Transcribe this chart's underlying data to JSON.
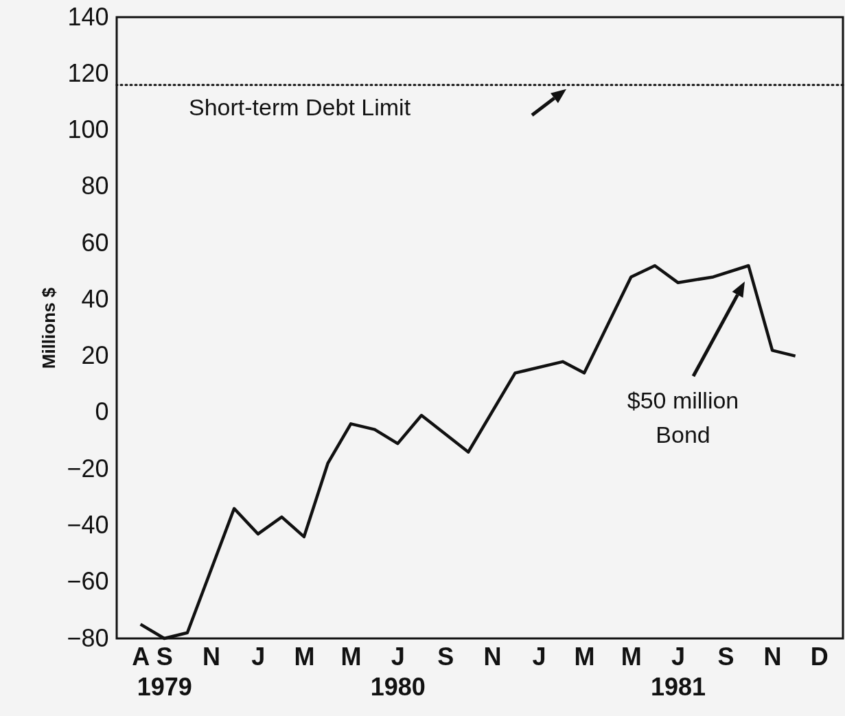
{
  "chart_data": {
    "type": "line",
    "ylabel": "Millions $",
    "x": [
      "1979-08",
      "1979-09",
      "1979-10",
      "1979-12",
      "1980-01",
      "1980-02",
      "1980-03",
      "1980-04",
      "1980-05",
      "1980-06",
      "1980-07",
      "1980-08",
      "1980-10",
      "1980-12",
      "1981-02",
      "1981-03",
      "1981-05",
      "1981-06",
      "1981-07",
      "1981-08-16",
      "1981-10",
      "1981-11",
      "1981-12"
    ],
    "series": [
      {
        "color": "#111111",
        "values": [
          -75,
          -80,
          -78,
          -34,
          -43,
          -37,
          -44,
          -18,
          -4,
          -6,
          -11,
          -1,
          -14,
          14,
          18,
          14,
          48,
          52,
          46,
          48,
          52,
          22,
          20
        ]
      }
    ],
    "xlim": [
      "1979-07",
      "1982-02"
    ],
    "xticks": [
      {
        "value": "1979-08",
        "label": "A"
      },
      {
        "value": "1979-09",
        "label": "S\n1979"
      },
      {
        "value": "1979-11",
        "label": "N"
      },
      {
        "value": "1980-01",
        "label": "J"
      },
      {
        "value": "1980-03",
        "label": "M"
      },
      {
        "value": "1980-05",
        "label": "M"
      },
      {
        "value": "1980-07",
        "label": "J\n1980"
      },
      {
        "value": "1980-09",
        "label": "S"
      },
      {
        "value": "1980-11",
        "label": "N"
      },
      {
        "value": "1981-01",
        "label": "J"
      },
      {
        "value": "1981-03",
        "label": "M"
      },
      {
        "value": "1981-05",
        "label": "M"
      },
      {
        "value": "1981-07",
        "label": "J\n1981"
      },
      {
        "value": "1981-09",
        "label": "S"
      },
      {
        "value": "1981-11",
        "label": "N"
      },
      {
        "value": "1982-01",
        "label": "D"
      }
    ],
    "ylim": [
      -80,
      140
    ],
    "yticks": [
      -80,
      -60,
      -40,
      -20,
      0,
      20,
      40,
      60,
      80,
      100,
      120,
      140
    ],
    "ref_lines": [
      {
        "axis": "y",
        "value": 116,
        "label": "Short-term Debt Limit",
        "line_style": "dotted"
      }
    ],
    "annotations": [
      "$50 million\nBond"
    ],
    "grid": false,
    "marker": "none",
    "line_style": "solid"
  }
}
